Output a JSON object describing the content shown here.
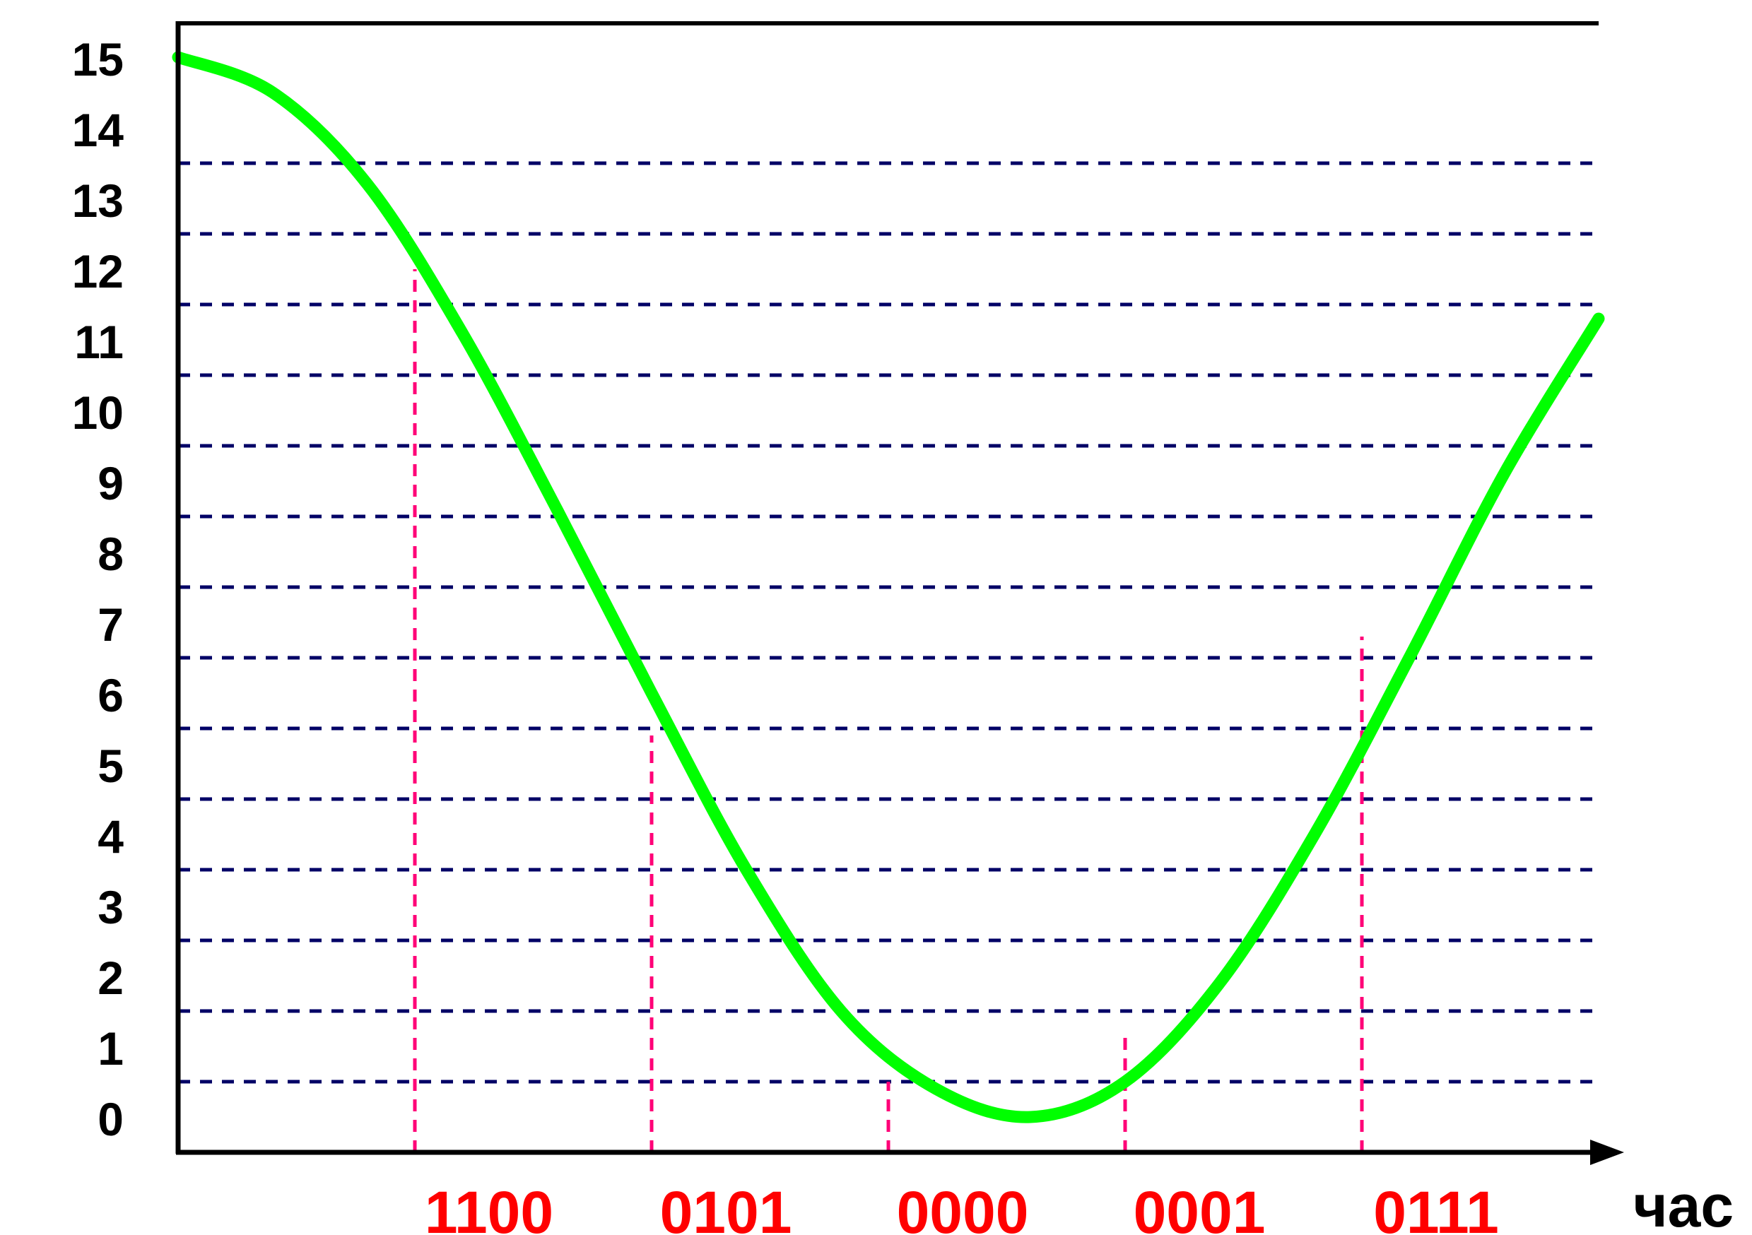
{
  "chart_data": {
    "type": "line",
    "xlabel": "час",
    "ylim": [
      0,
      15
    ],
    "y_ticks": [
      "0",
      "1",
      "2",
      "3",
      "4",
      "5",
      "6",
      "7",
      "8",
      "9",
      "10",
      "11",
      "12",
      "13",
      "14",
      "15"
    ],
    "grid": "horizontal dashed",
    "curve": {
      "x": [
        0,
        0.4,
        0.8,
        1.2,
        1.6,
        2.0,
        2.4,
        2.8,
        3.2,
        3.6,
        4.0,
        4.4,
        4.8,
        5.2,
        5.6,
        6.0
      ],
      "y": [
        15.5,
        15.0,
        13.7,
        11.6,
        9.1,
        6.5,
        4.0,
        2.0,
        0.9,
        0.5,
        1.0,
        2.4,
        4.5,
        7.0,
        9.6,
        11.8
      ]
    },
    "samples": [
      {
        "x": 1,
        "y": 12.5,
        "code": "1100"
      },
      {
        "x": 2,
        "y": 5.9,
        "code": "0101"
      },
      {
        "x": 3,
        "y": 1.0,
        "code": "0000"
      },
      {
        "x": 4,
        "y": 1.7,
        "code": "0001"
      },
      {
        "x": 5,
        "y": 7.3,
        "code": "0111"
      }
    ]
  },
  "colors": {
    "curve": "#00ff00",
    "grid": "#000066",
    "sample": "#ff0077",
    "code": "#ff0000",
    "axis": "#000000"
  }
}
